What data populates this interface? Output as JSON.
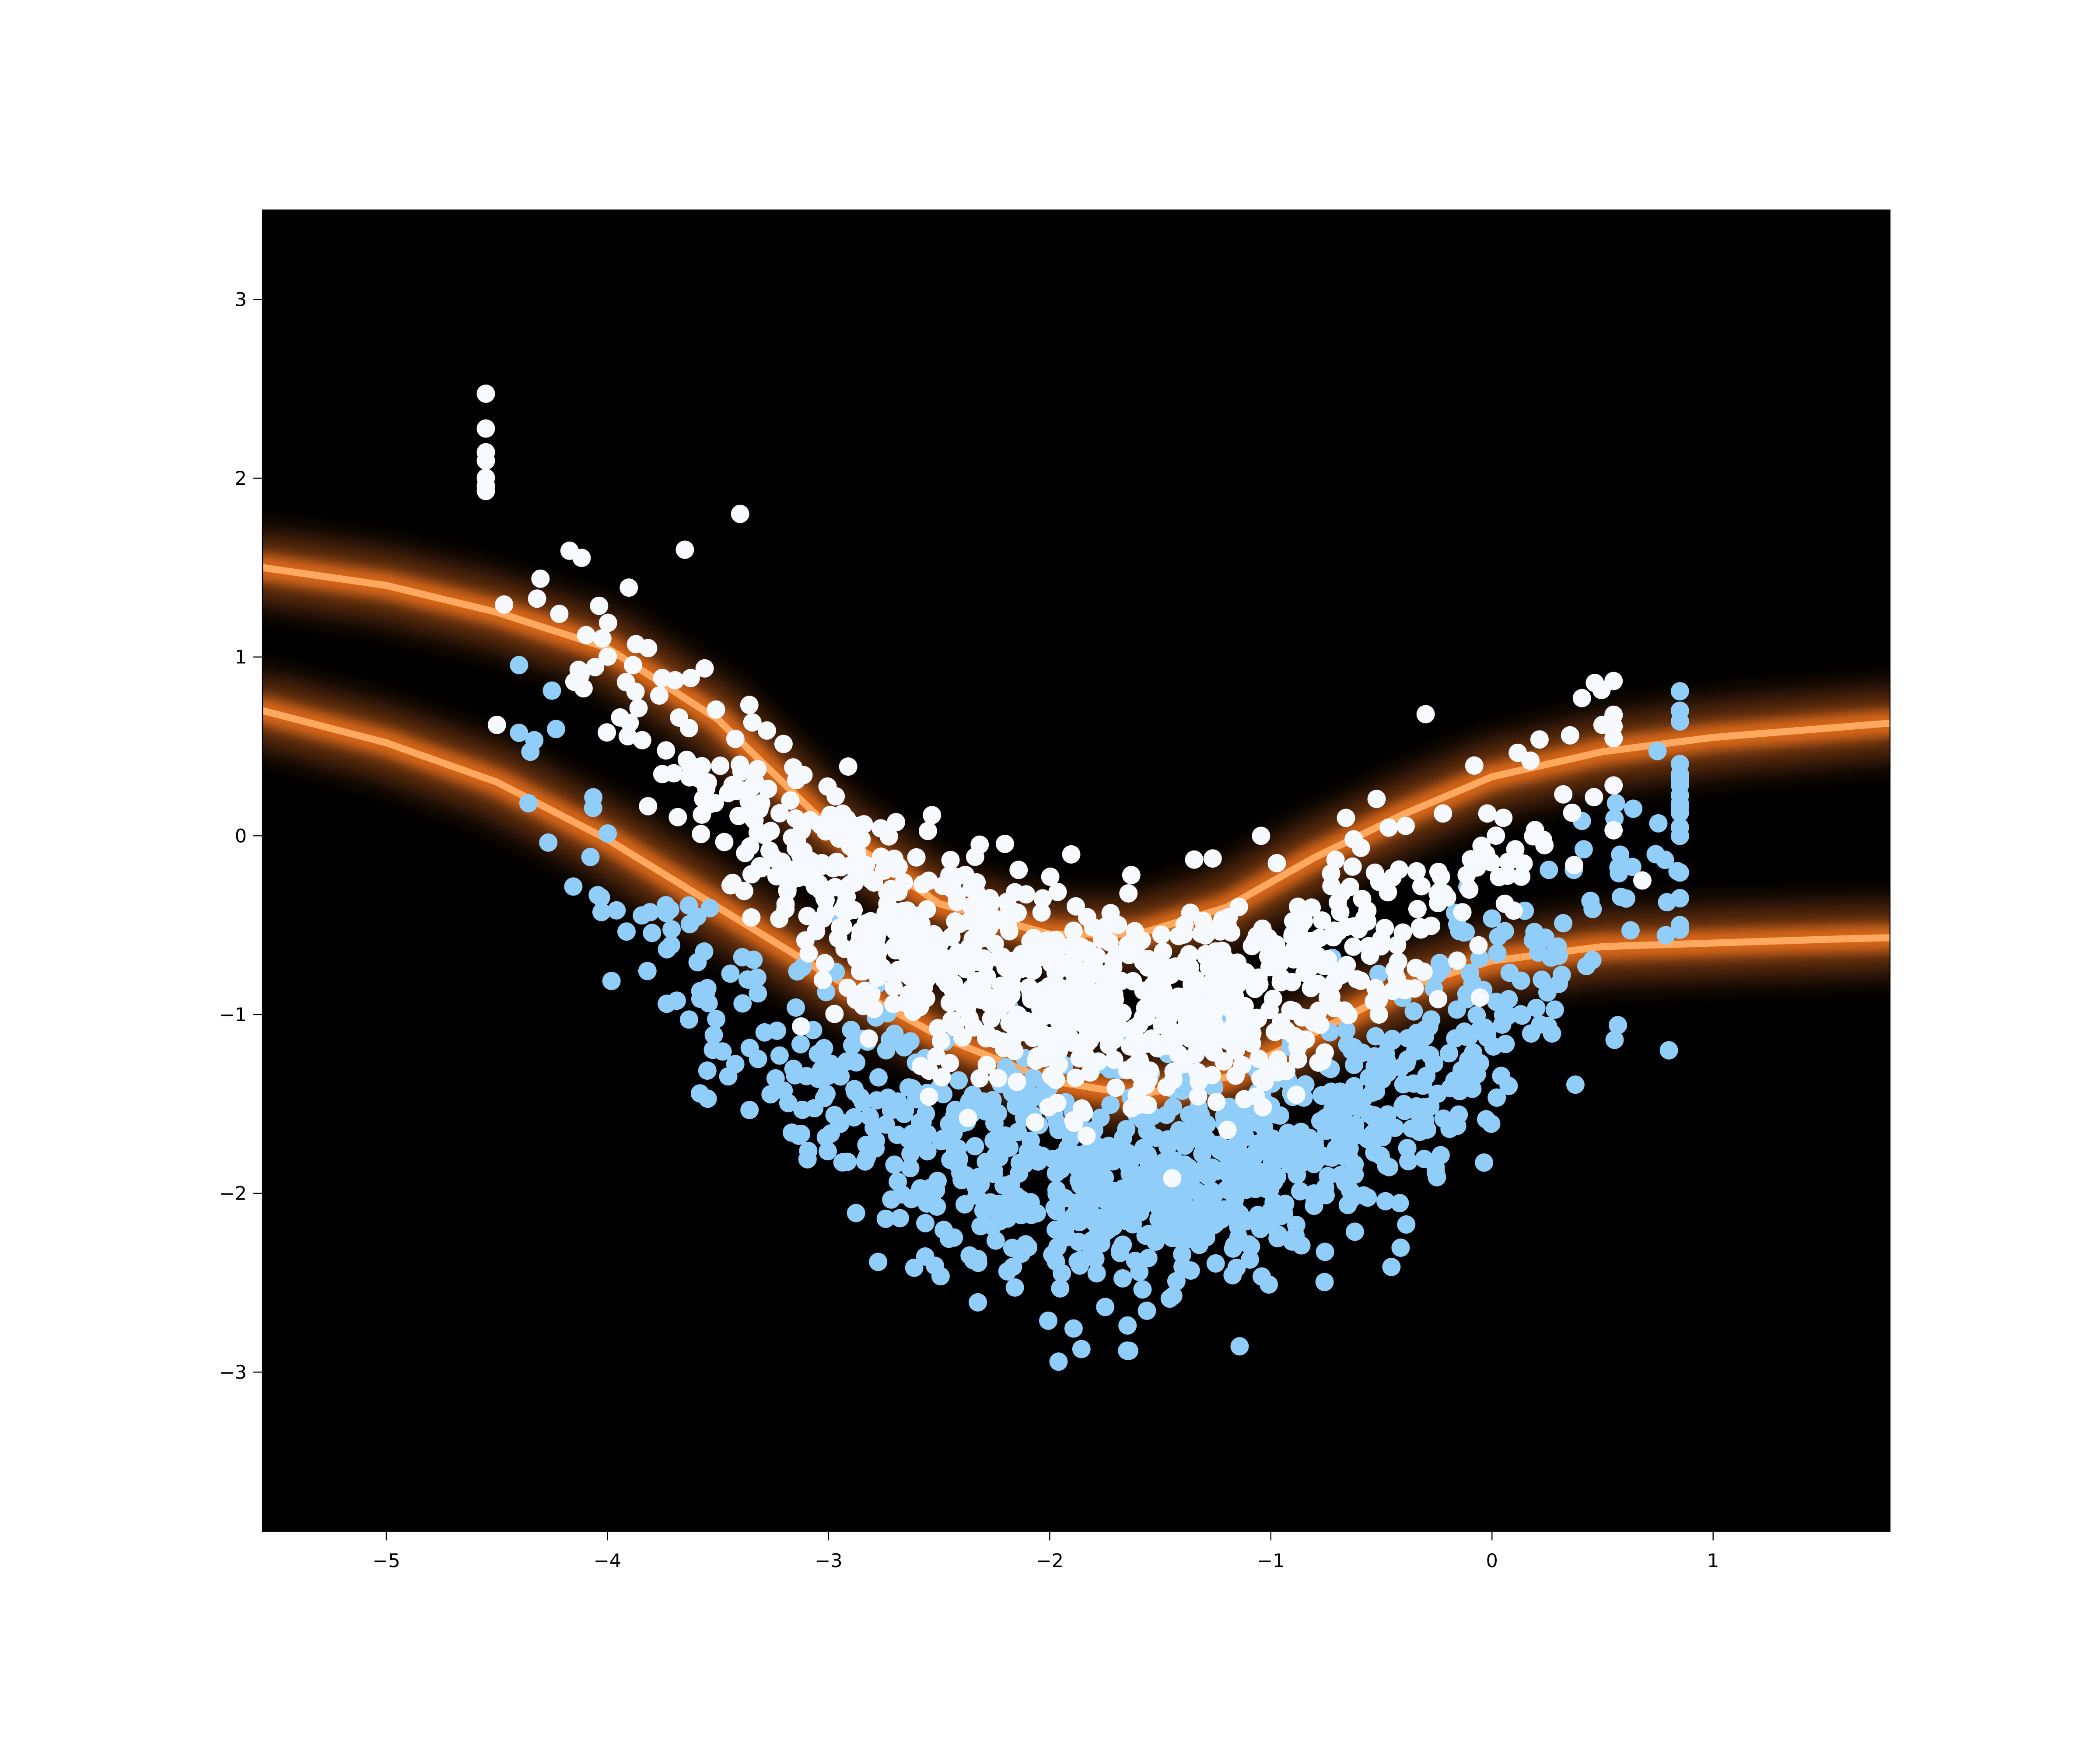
{
  "chart_data": {
    "type": "scatter",
    "title": "",
    "xlabel": "",
    "ylabel": "",
    "xlim": [
      -5.56,
      1.8
    ],
    "ylim": [
      -3.89,
      3.5
    ],
    "grid": false,
    "legend": "none",
    "background": "#000000",
    "x_ticks": [
      {
        "value": -5,
        "label": "−5"
      },
      {
        "value": -4,
        "label": "−4"
      },
      {
        "value": -3,
        "label": "−3"
      },
      {
        "value": -2,
        "label": "−2"
      },
      {
        "value": -1,
        "label": "−1"
      },
      {
        "value": 0,
        "label": "0"
      },
      {
        "value": 1,
        "label": "1"
      }
    ],
    "y_ticks": [
      {
        "value": -3,
        "label": "−3"
      },
      {
        "value": -2,
        "label": "−2"
      },
      {
        "value": -1,
        "label": "−1"
      },
      {
        "value": 0,
        "label": "0"
      },
      {
        "value": 1,
        "label": "1"
      },
      {
        "value": 2,
        "label": "2"
      },
      {
        "value": 3,
        "label": "3"
      }
    ],
    "decision_bands": {
      "description": "glowing orange level curves of a classifier score",
      "color": "#ffa860",
      "glow_color": "#ff7a20",
      "curves": [
        {
          "x": [
            -5.56,
            -5.0,
            -4.5,
            -4.0,
            -3.5,
            -3.0,
            -2.5,
            -2.0,
            -1.6,
            -1.2,
            -0.8,
            -0.4,
            0.0,
            0.5,
            1.0,
            1.5,
            1.8
          ],
          "y": [
            0.7,
            0.52,
            0.3,
            -0.02,
            -0.4,
            -0.78,
            -1.12,
            -1.37,
            -1.45,
            -1.35,
            -1.1,
            -0.85,
            -0.7,
            -0.62,
            -0.6,
            -0.58,
            -0.57
          ]
        },
        {
          "x": [
            -5.56,
            -5.0,
            -4.5,
            -4.0,
            -3.5,
            -3.0,
            -2.5,
            -2.0,
            -1.6,
            -1.2,
            -0.8,
            -0.4,
            0.0,
            0.5,
            1.0,
            1.5,
            1.8
          ],
          "y": [
            1.5,
            1.4,
            1.25,
            1.05,
            0.65,
            0.05,
            -0.38,
            -0.55,
            -0.55,
            -0.4,
            -0.12,
            0.12,
            0.33,
            0.47,
            0.55,
            0.6,
            0.63
          ]
        }
      ]
    },
    "series": [
      {
        "color": "#90cdf9",
        "count": 1000,
        "generator": {
          "x_center": -1.5,
          "x_spread": 1.1,
          "x_min": -4.4,
          "x_max": 0.85,
          "curve": "parabola",
          "vertex_x": -1.7,
          "vertex_y": -1.95,
          "curvature": 0.32,
          "noise_sd": 0.32,
          "seed": 17
        }
      },
      {
        "color": "#f6faff",
        "count": 1000,
        "generator": {
          "x_center": -1.9,
          "x_spread": 1.05,
          "x_min": -4.55,
          "x_max": 0.55,
          "curve": "parabola",
          "vertex_x": -1.55,
          "vertex_y": -0.95,
          "curvature": 0.32,
          "noise_sd": 0.3,
          "seed": 91
        }
      }
    ],
    "notable_points": [
      {
        "x": -3.4,
        "y": 1.8,
        "color": "#f6faff"
      },
      {
        "x": -3.65,
        "y": 1.6,
        "color": "#f6faff"
      },
      {
        "x": -1.65,
        "y": -2.88,
        "color": "#90cdf9"
      },
      {
        "x": 0.8,
        "y": -1.2,
        "color": "#90cdf9"
      },
      {
        "x": 0.5,
        "y": 0.62,
        "color": "#f6faff"
      },
      {
        "x": -0.3,
        "y": 0.68,
        "color": "#f6faff"
      },
      {
        "x": 0.68,
        "y": -0.25,
        "color": "#f6faff"
      },
      {
        "x": -4.5,
        "y": 0.62,
        "color": "#f6faff"
      }
    ]
  }
}
